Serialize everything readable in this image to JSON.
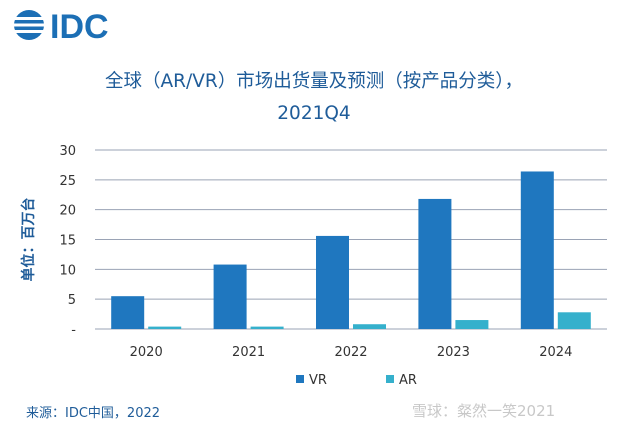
{
  "brand": {
    "logo_text": "IDC"
  },
  "title_line1": "全球（AR/VR）市场出货量及预测（按产品分类），",
  "title_line2": "2021Q4",
  "source": "来源：IDC中国，2022",
  "watermark": "雪球：粲然一笑2021",
  "chart_data": {
    "type": "bar",
    "title": "全球（AR/VR）市场出货量及预测（按产品分类），2021Q4",
    "ylabel": "单位：百万台",
    "categories": [
      "2020",
      "2021",
      "2022",
      "2023",
      "2024"
    ],
    "ylim": [
      0,
      30
    ],
    "yticks": [
      0,
      5,
      10,
      15,
      20,
      25,
      30
    ],
    "ytick_labels": [
      "-",
      "5",
      "10",
      "15",
      "20",
      "25",
      "30"
    ],
    "grid": true,
    "legend_position": "bottom",
    "series": [
      {
        "name": "VR",
        "color": "#1f77bf",
        "values": [
          5.5,
          10.8,
          15.6,
          21.8,
          26.4
        ]
      },
      {
        "name": "AR",
        "color": "#35b0cc",
        "values": [
          0.4,
          0.4,
          0.8,
          1.5,
          2.8
        ]
      }
    ]
  }
}
